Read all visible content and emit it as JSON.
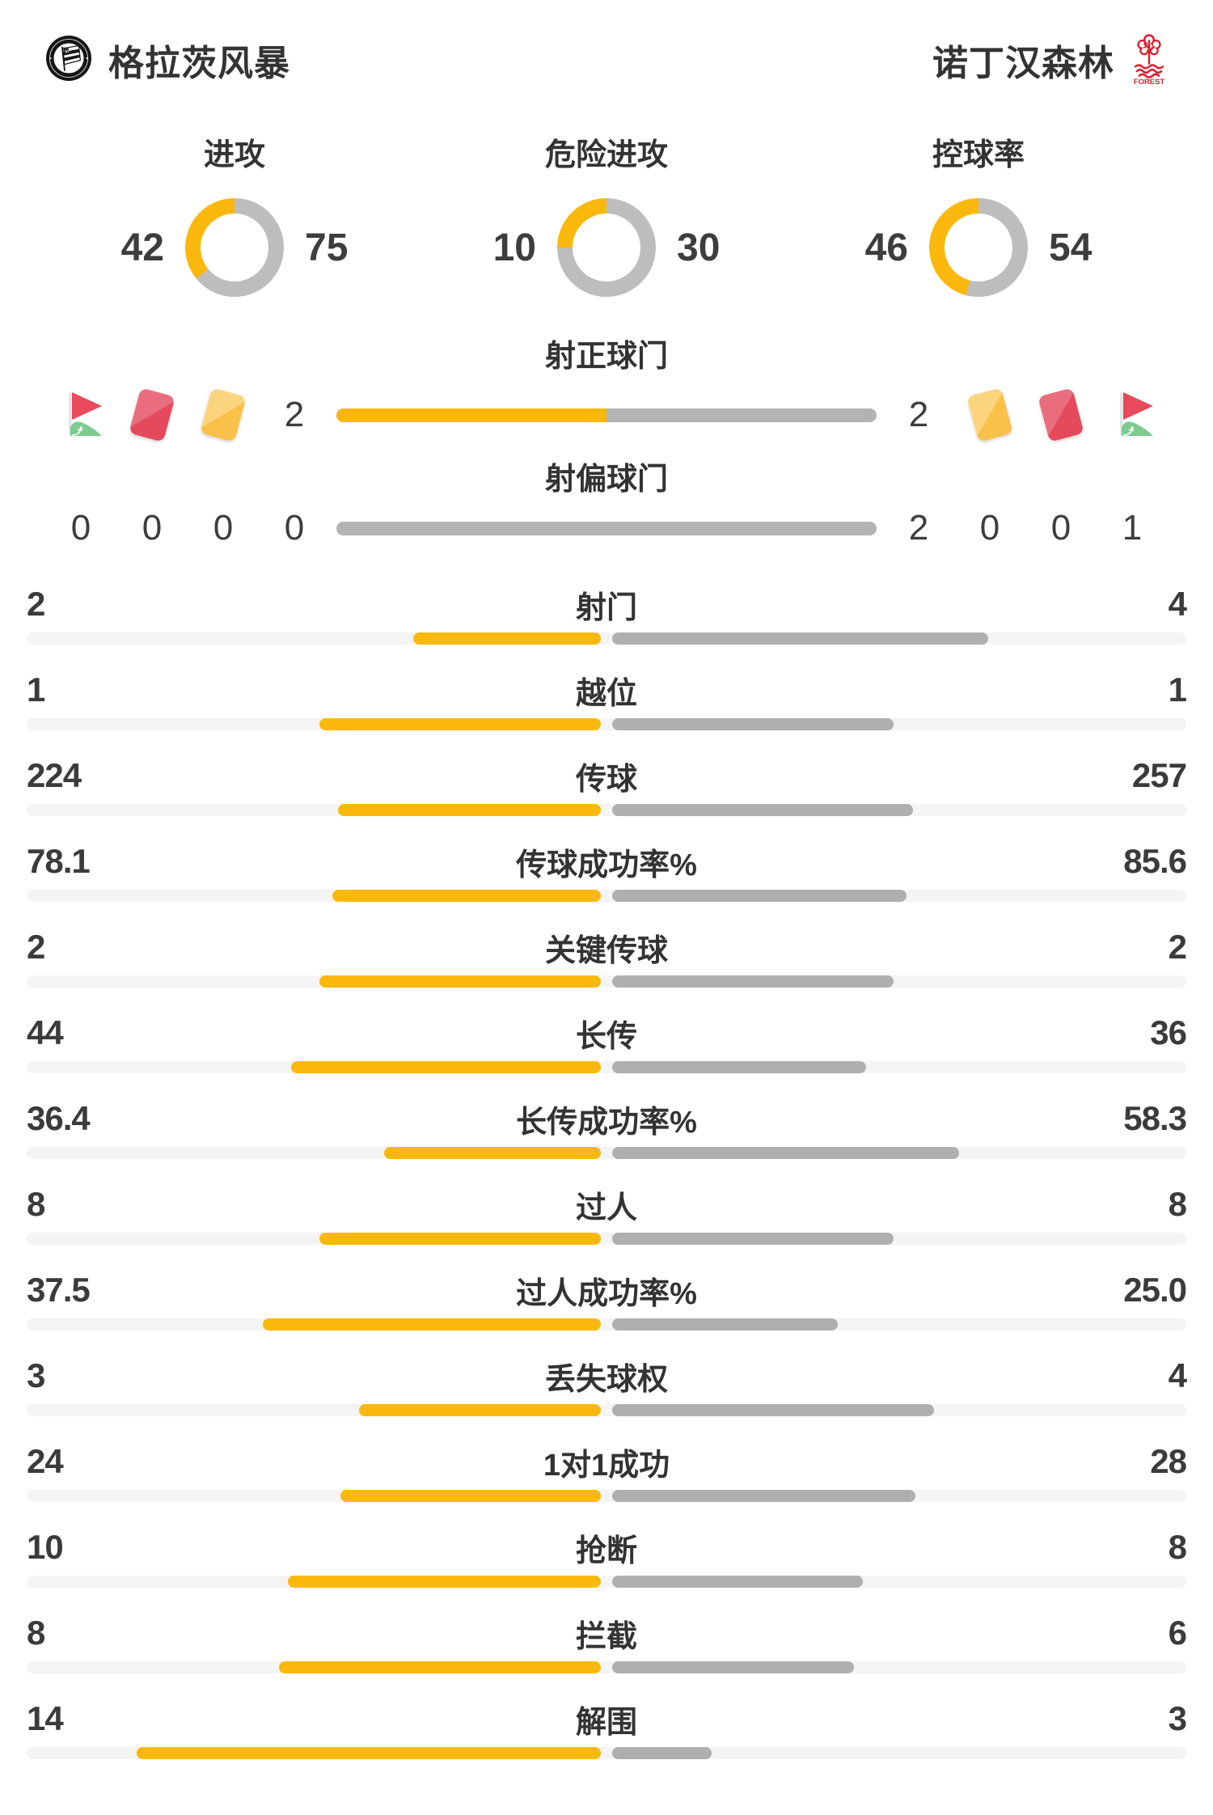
{
  "header": {
    "home": {
      "name": "格拉茨风暴",
      "logo": "sturm-graz-crest"
    },
    "away": {
      "name": "诺丁汉森林",
      "logo": "nottingham-forest-crest",
      "logo_text": "FOREST"
    }
  },
  "donuts": [
    {
      "label": "进攻",
      "home": 42,
      "away": 75
    },
    {
      "label": "危险进攻",
      "home": 10,
      "away": 30
    },
    {
      "label": "控球率",
      "home": 46,
      "away": 54
    }
  ],
  "discipline": {
    "shots_on_label": "射正球门",
    "shots_off_label": "射偏球门",
    "shots_on": {
      "home": "2",
      "away": "2"
    },
    "shots_off": {
      "home": "0",
      "away": "2"
    },
    "corners": {
      "home": "0",
      "away": "1"
    },
    "red_cards": {
      "home": "0",
      "away": "0"
    },
    "yellow_cards": {
      "home": "0",
      "away": "0"
    }
  },
  "stats": {
    "rows": [
      {
        "label": "射门",
        "home": "2",
        "away": "4"
      },
      {
        "label": "越位",
        "home": "1",
        "away": "1"
      },
      {
        "label": "传球",
        "home": "224",
        "away": "257"
      },
      {
        "label": "传球成功率%",
        "home": "78.1",
        "away": "85.6"
      },
      {
        "label": "关键传球",
        "home": "2",
        "away": "2"
      },
      {
        "label": "长传",
        "home": "44",
        "away": "36"
      },
      {
        "label": "长传成功率%",
        "home": "36.4",
        "away": "58.3"
      },
      {
        "label": "过人",
        "home": "8",
        "away": "8"
      },
      {
        "label": "过人成功率%",
        "home": "37.5",
        "away": "25.0"
      },
      {
        "label": "丢失球权",
        "home": "3",
        "away": "4"
      },
      {
        "label": "1对1成功",
        "home": "24",
        "away": "28"
      },
      {
        "label": "抢断",
        "home": "10",
        "away": "8"
      },
      {
        "label": "拦截",
        "home": "8",
        "away": "6"
      },
      {
        "label": "解围",
        "home": "14",
        "away": "3"
      }
    ]
  },
  "colors": {
    "accent_yellow": "#fbb80c",
    "bar_gray": "#afafaf",
    "donut_gray": "#bdbdbd",
    "track_gray": "#f4f4f4",
    "text": "#383838",
    "card_red": "#e4495c",
    "card_yellow": "#f9c04a",
    "flag_green": "#7ccb8f",
    "forest_red": "#e11b2e"
  },
  "chart_data": [
    {
      "type": "pie",
      "title": "进攻",
      "series": [
        {
          "name": "格拉茨风暴",
          "values": [
            42
          ]
        },
        {
          "name": "诺丁汉森林",
          "values": [
            75
          ]
        }
      ]
    },
    {
      "type": "pie",
      "title": "危险进攻",
      "series": [
        {
          "name": "格拉茨风暴",
          "values": [
            10
          ]
        },
        {
          "name": "诺丁汉森林",
          "values": [
            30
          ]
        }
      ]
    },
    {
      "type": "pie",
      "title": "控球率",
      "series": [
        {
          "name": "格拉茨风暴",
          "values": [
            46
          ]
        },
        {
          "name": "诺丁汉森林",
          "values": [
            54
          ]
        }
      ]
    },
    {
      "type": "bar",
      "categories": [
        "射正球门",
        "射偏球门",
        "角球",
        "红牌",
        "黄牌",
        "射门",
        "越位",
        "传球",
        "传球成功率%",
        "关键传球",
        "长传",
        "长传成功率%",
        "过人",
        "过人成功率%",
        "丢失球权",
        "1对1成功",
        "抢断",
        "拦截",
        "解围"
      ],
      "series": [
        {
          "name": "格拉茨风暴",
          "values": [
            2,
            0,
            0,
            0,
            0,
            2,
            1,
            224,
            78.1,
            2,
            44,
            36.4,
            8,
            37.5,
            3,
            24,
            10,
            8,
            14
          ]
        },
        {
          "name": "诺丁汉森林",
          "values": [
            2,
            2,
            1,
            0,
            0,
            4,
            1,
            257,
            85.6,
            2,
            36,
            58.3,
            8,
            25.0,
            4,
            28,
            8,
            6,
            3
          ]
        }
      ]
    }
  ]
}
